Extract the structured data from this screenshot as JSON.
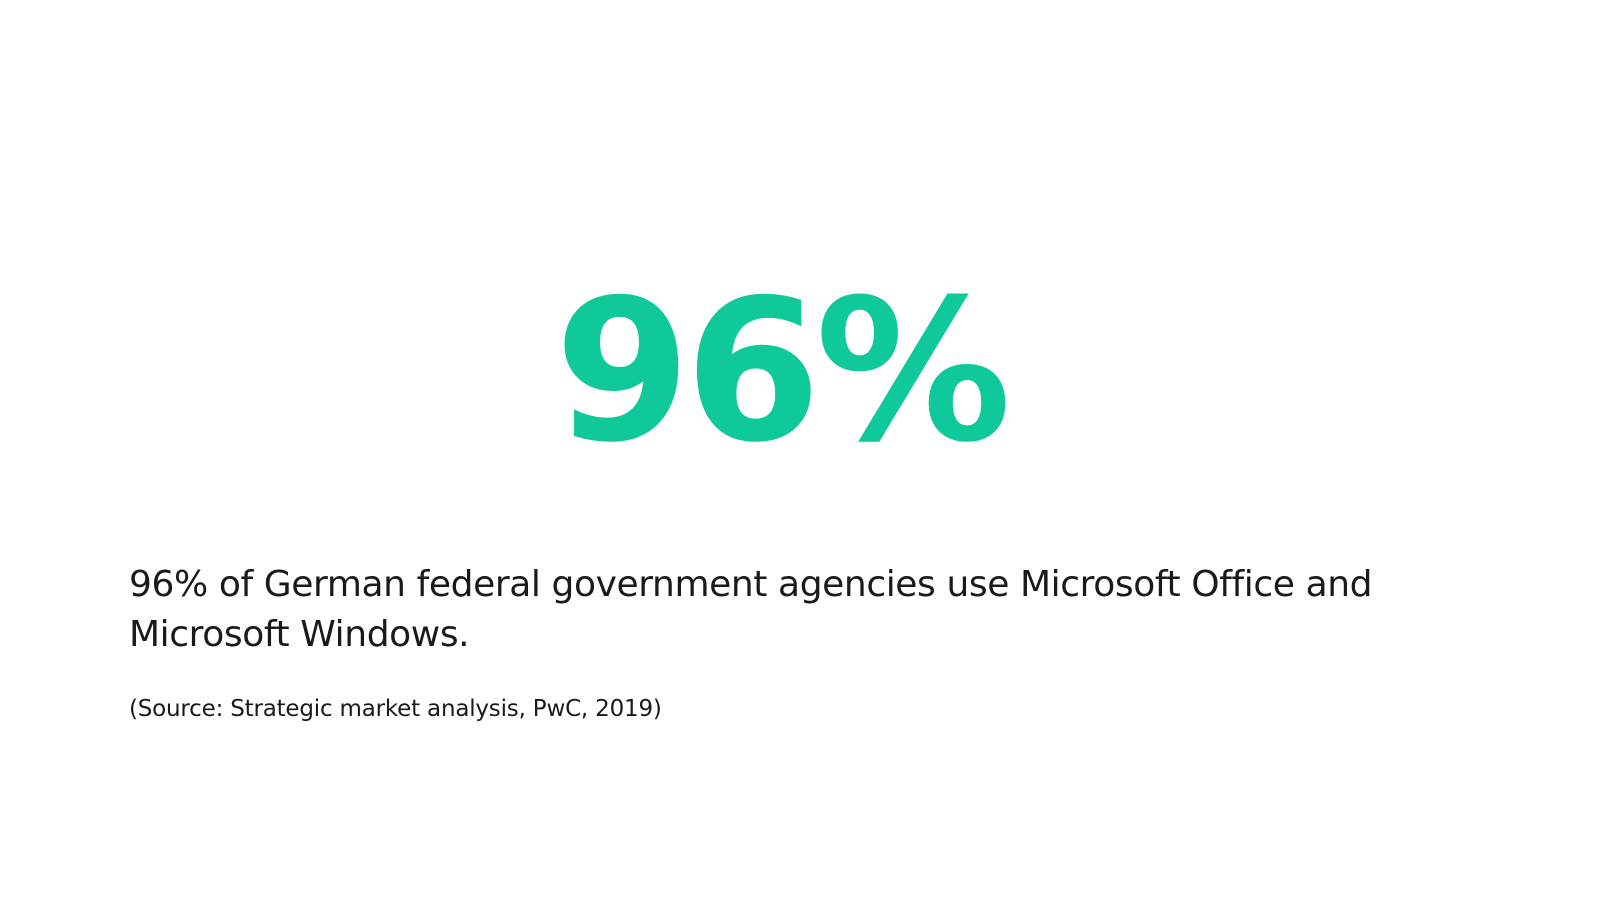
{
  "slide": {
    "stat_value": "96%",
    "description": "96% of German federal government agencies use Microsoft Office and Microsoft Windows.",
    "source": "(Source: Strategic market analysis, PwC, 2019)"
  },
  "colors": {
    "accent": "#10c99a",
    "text": "#1a1a1a",
    "background": "#ffffff"
  }
}
